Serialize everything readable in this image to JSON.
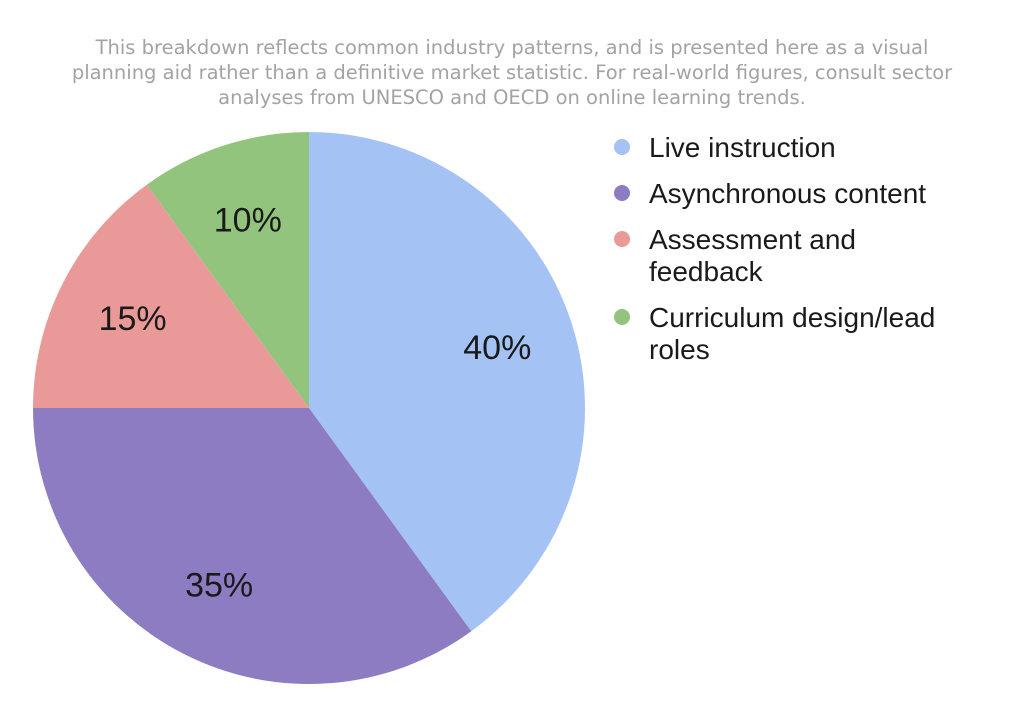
{
  "chart_data": {
    "type": "pie",
    "caption_lines": [
      "This breakdown reflects common industry patterns, and is presented here as a visual",
      "planning aid rather than a definitive market statistic. For real-world figures, consult sector",
      "analyses from UNESCO and OECD on online learning trends."
    ],
    "slices": [
      {
        "label_lines": [
          "Live instruction"
        ],
        "value": 40,
        "data_label": "40%",
        "color": "#a4c2f4"
      },
      {
        "label_lines": [
          "Asynchronous content"
        ],
        "value": 35,
        "data_label": "35%",
        "color": "#8e7cc3"
      },
      {
        "label_lines": [
          "Assessment and",
          "feedback"
        ],
        "value": 15,
        "data_label": "15%",
        "color": "#ea9999"
      },
      {
        "label_lines": [
          "Curriculum design/lead",
          "roles"
        ],
        "value": 10,
        "data_label": "10%",
        "color": "#93c47d"
      }
    ],
    "start_angle": "12 o'clock",
    "direction": "clockwise",
    "legend_position": "right"
  }
}
